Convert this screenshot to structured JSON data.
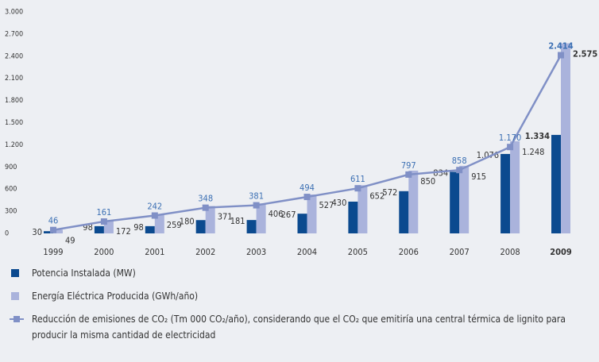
{
  "chart_data": {
    "type": "bar-line",
    "categories": [
      "1999",
      "2000",
      "2001",
      "2002",
      "2003",
      "2004",
      "2005",
      "2006",
      "2007",
      "2008",
      "2009"
    ],
    "series": [
      {
        "name": "Potencia Instalada (MW)",
        "color": "#0b4a8f",
        "type": "bar",
        "values": [
          30,
          98,
          98,
          180,
          181,
          267,
          430,
          572,
          834,
          1076,
          1334
        ],
        "value_labels": [
          "30",
          "98",
          "98",
          "180",
          "181",
          "267",
          "430",
          "572",
          "834",
          "1.076",
          "1.334"
        ]
      },
      {
        "name": "Energía Eléctrica Producida (GWh/año)",
        "color": "#aab3dc",
        "type": "bar",
        "values": [
          49,
          172,
          259,
          371,
          406,
          527,
          652,
          850,
          915,
          1248,
          2575
        ],
        "value_labels": [
          "49",
          "172",
          "259",
          "371",
          "406",
          "527",
          "652",
          "850",
          "915",
          "1.248",
          "2.575"
        ]
      },
      {
        "name": "Reducción de emisiones de CO₂ (Tm 000 CO₂/año), considerando que el CO₂ que emitiría una central térmica de lignito para producir la misma cantidad de electricidad",
        "color": "#8090c6",
        "type": "line",
        "values": [
          46,
          161,
          242,
          348,
          381,
          494,
          611,
          797,
          858,
          1170,
          2414
        ],
        "value_labels": [
          "46",
          "161",
          "242",
          "348",
          "381",
          "494",
          "611",
          "797",
          "858",
          "1.170",
          "2.414"
        ]
      }
    ],
    "ylim": [
      0,
      3000
    ],
    "yticks": [
      0,
      300,
      600,
      900,
      {
        "value": 1200,
        "label": "1.200"
      },
      {
        "value": 1500,
        "label": "1.500"
      },
      {
        "value": 1800,
        "label": "1.800"
      },
      {
        "value": 2100,
        "label": "2.100"
      },
      {
        "value": 2400,
        "label": "2.400"
      },
      {
        "value": 2700,
        "label": "2.700"
      },
      {
        "value": 3000,
        "label": "3.000"
      }
    ],
    "grid": false
  }
}
